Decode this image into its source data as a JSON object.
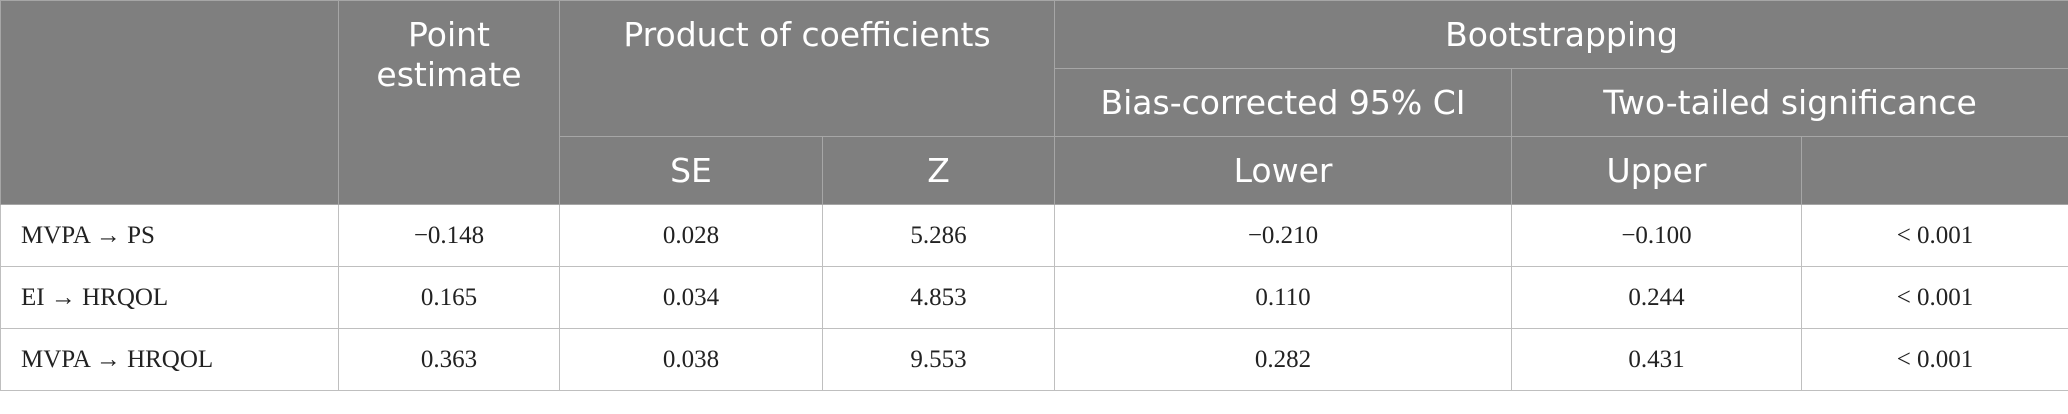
{
  "table": {
    "header": {
      "point_estimate": "Point estimate",
      "product_of_coefficients": "Product of coefficients",
      "bootstrapping": "Bootstrapping",
      "bias_corrected": "Bias-corrected 95% CI",
      "two_tailed": "Two-tailed significance",
      "se": "SE",
      "z": "Z",
      "lower": "Lower",
      "upper": "Upper"
    },
    "rows": [
      [
        "MVPA → PS",
        "−0.148",
        "0.028",
        "5.286",
        "−0.210",
        "−0.100",
        "< 0.001"
      ],
      [
        "EI → HRQOL",
        "0.165",
        "0.034",
        "4.853",
        "0.110",
        "0.244",
        "< 0.001"
      ],
      [
        "MVPA → HRQOL",
        "0.363",
        "0.038",
        "9.553",
        "0.282",
        "0.431",
        "< 0.001"
      ]
    ]
  }
}
